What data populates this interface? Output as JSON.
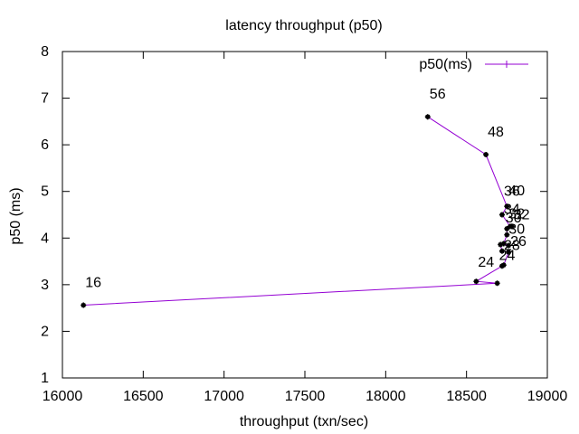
{
  "chart_data": {
    "type": "line",
    "title": "latency throughput (p50)",
    "xlabel": "throughput (txn/sec)",
    "ylabel": "p50 (ms)",
    "xlim": [
      16000,
      19000
    ],
    "ylim": [
      1,
      8
    ],
    "xticks": [
      "16000",
      "16500",
      "17000",
      "17500",
      "18000",
      "18500",
      "19000"
    ],
    "yticks": [
      "1",
      "2",
      "3",
      "4",
      "5",
      "6",
      "7",
      "8"
    ],
    "grid": false,
    "legend_position": "top-right",
    "series": [
      {
        "name": "p50(ms)",
        "color": "#9400d3",
        "marker": "plus",
        "x": [
          16130,
          18690,
          18560,
          18720,
          18730,
          18760,
          18720,
          18710,
          18760,
          18730,
          18750,
          18750,
          18780,
          18770,
          18720,
          18750,
          18620,
          18260
        ],
        "y": [
          2.56,
          3.03,
          3.07,
          3.4,
          3.42,
          3.7,
          3.72,
          3.86,
          3.84,
          3.88,
          4.07,
          4.2,
          4.25,
          4.25,
          4.5,
          4.68,
          5.79,
          6.6
        ],
        "labels": [
          "16",
          "24",
          "24",
          "",
          "",
          "",
          "28",
          "",
          "",
          "",
          "30",
          "",
          "32",
          "",
          "34",
          "40",
          "48",
          "56"
        ]
      }
    ],
    "annotations": [
      "16",
      "24",
      "24",
      "28",
      "26",
      "30",
      "30",
      "32",
      "32",
      "34",
      "36",
      "40",
      "48",
      "56"
    ]
  },
  "colors": {
    "series_line": "#9400d3",
    "markers": "#000000",
    "axes": "#000000"
  }
}
